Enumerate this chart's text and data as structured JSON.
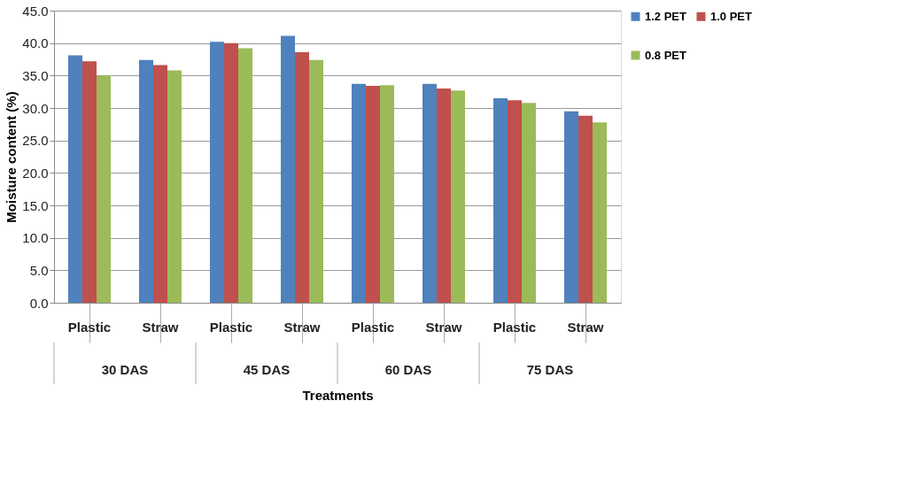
{
  "chart_data": {
    "type": "bar",
    "xlabel": "Treatments",
    "ylabel": "Moisture content (%)",
    "categories": [
      "Plastic",
      "Straw",
      "Plastic",
      "Straw",
      "Plastic",
      "Straw",
      "Plastic",
      "Straw"
    ],
    "annotations": [
      "30 DAS",
      "45 DAS",
      "60 DAS",
      "75 DAS"
    ],
    "series": [
      {
        "name": "1.2 PET",
        "color": "#4f81bd",
        "values": [
          38.1,
          37.4,
          40.2,
          41.1,
          33.7,
          33.7,
          31.5,
          29.5
        ]
      },
      {
        "name": "1.0 PET",
        "color": "#c0504d",
        "values": [
          37.2,
          36.6,
          40.0,
          38.6,
          33.4,
          33.0,
          31.2,
          28.8
        ]
      },
      {
        "name": "0.8 PET",
        "color": "#9bbb59",
        "values": [
          35.0,
          35.8,
          39.2,
          37.4,
          33.5,
          32.7,
          30.8,
          27.8
        ]
      }
    ],
    "ylim": [
      0,
      45
    ],
    "yticks": [
      {
        "value": 0,
        "label": "0.0"
      },
      {
        "value": 5,
        "label": "5.0"
      },
      {
        "value": 10,
        "label": "10.0"
      },
      {
        "value": 15,
        "label": "15.0"
      },
      {
        "value": 20,
        "label": "20.0"
      },
      {
        "value": 25,
        "label": "25.0"
      },
      {
        "value": 30,
        "label": "30.0"
      },
      {
        "value": 35,
        "label": "35.0"
      },
      {
        "value": 40,
        "label": "40.0"
      },
      {
        "value": 45,
        "label": "45.0"
      }
    ],
    "grid": "y",
    "legend": "right"
  }
}
